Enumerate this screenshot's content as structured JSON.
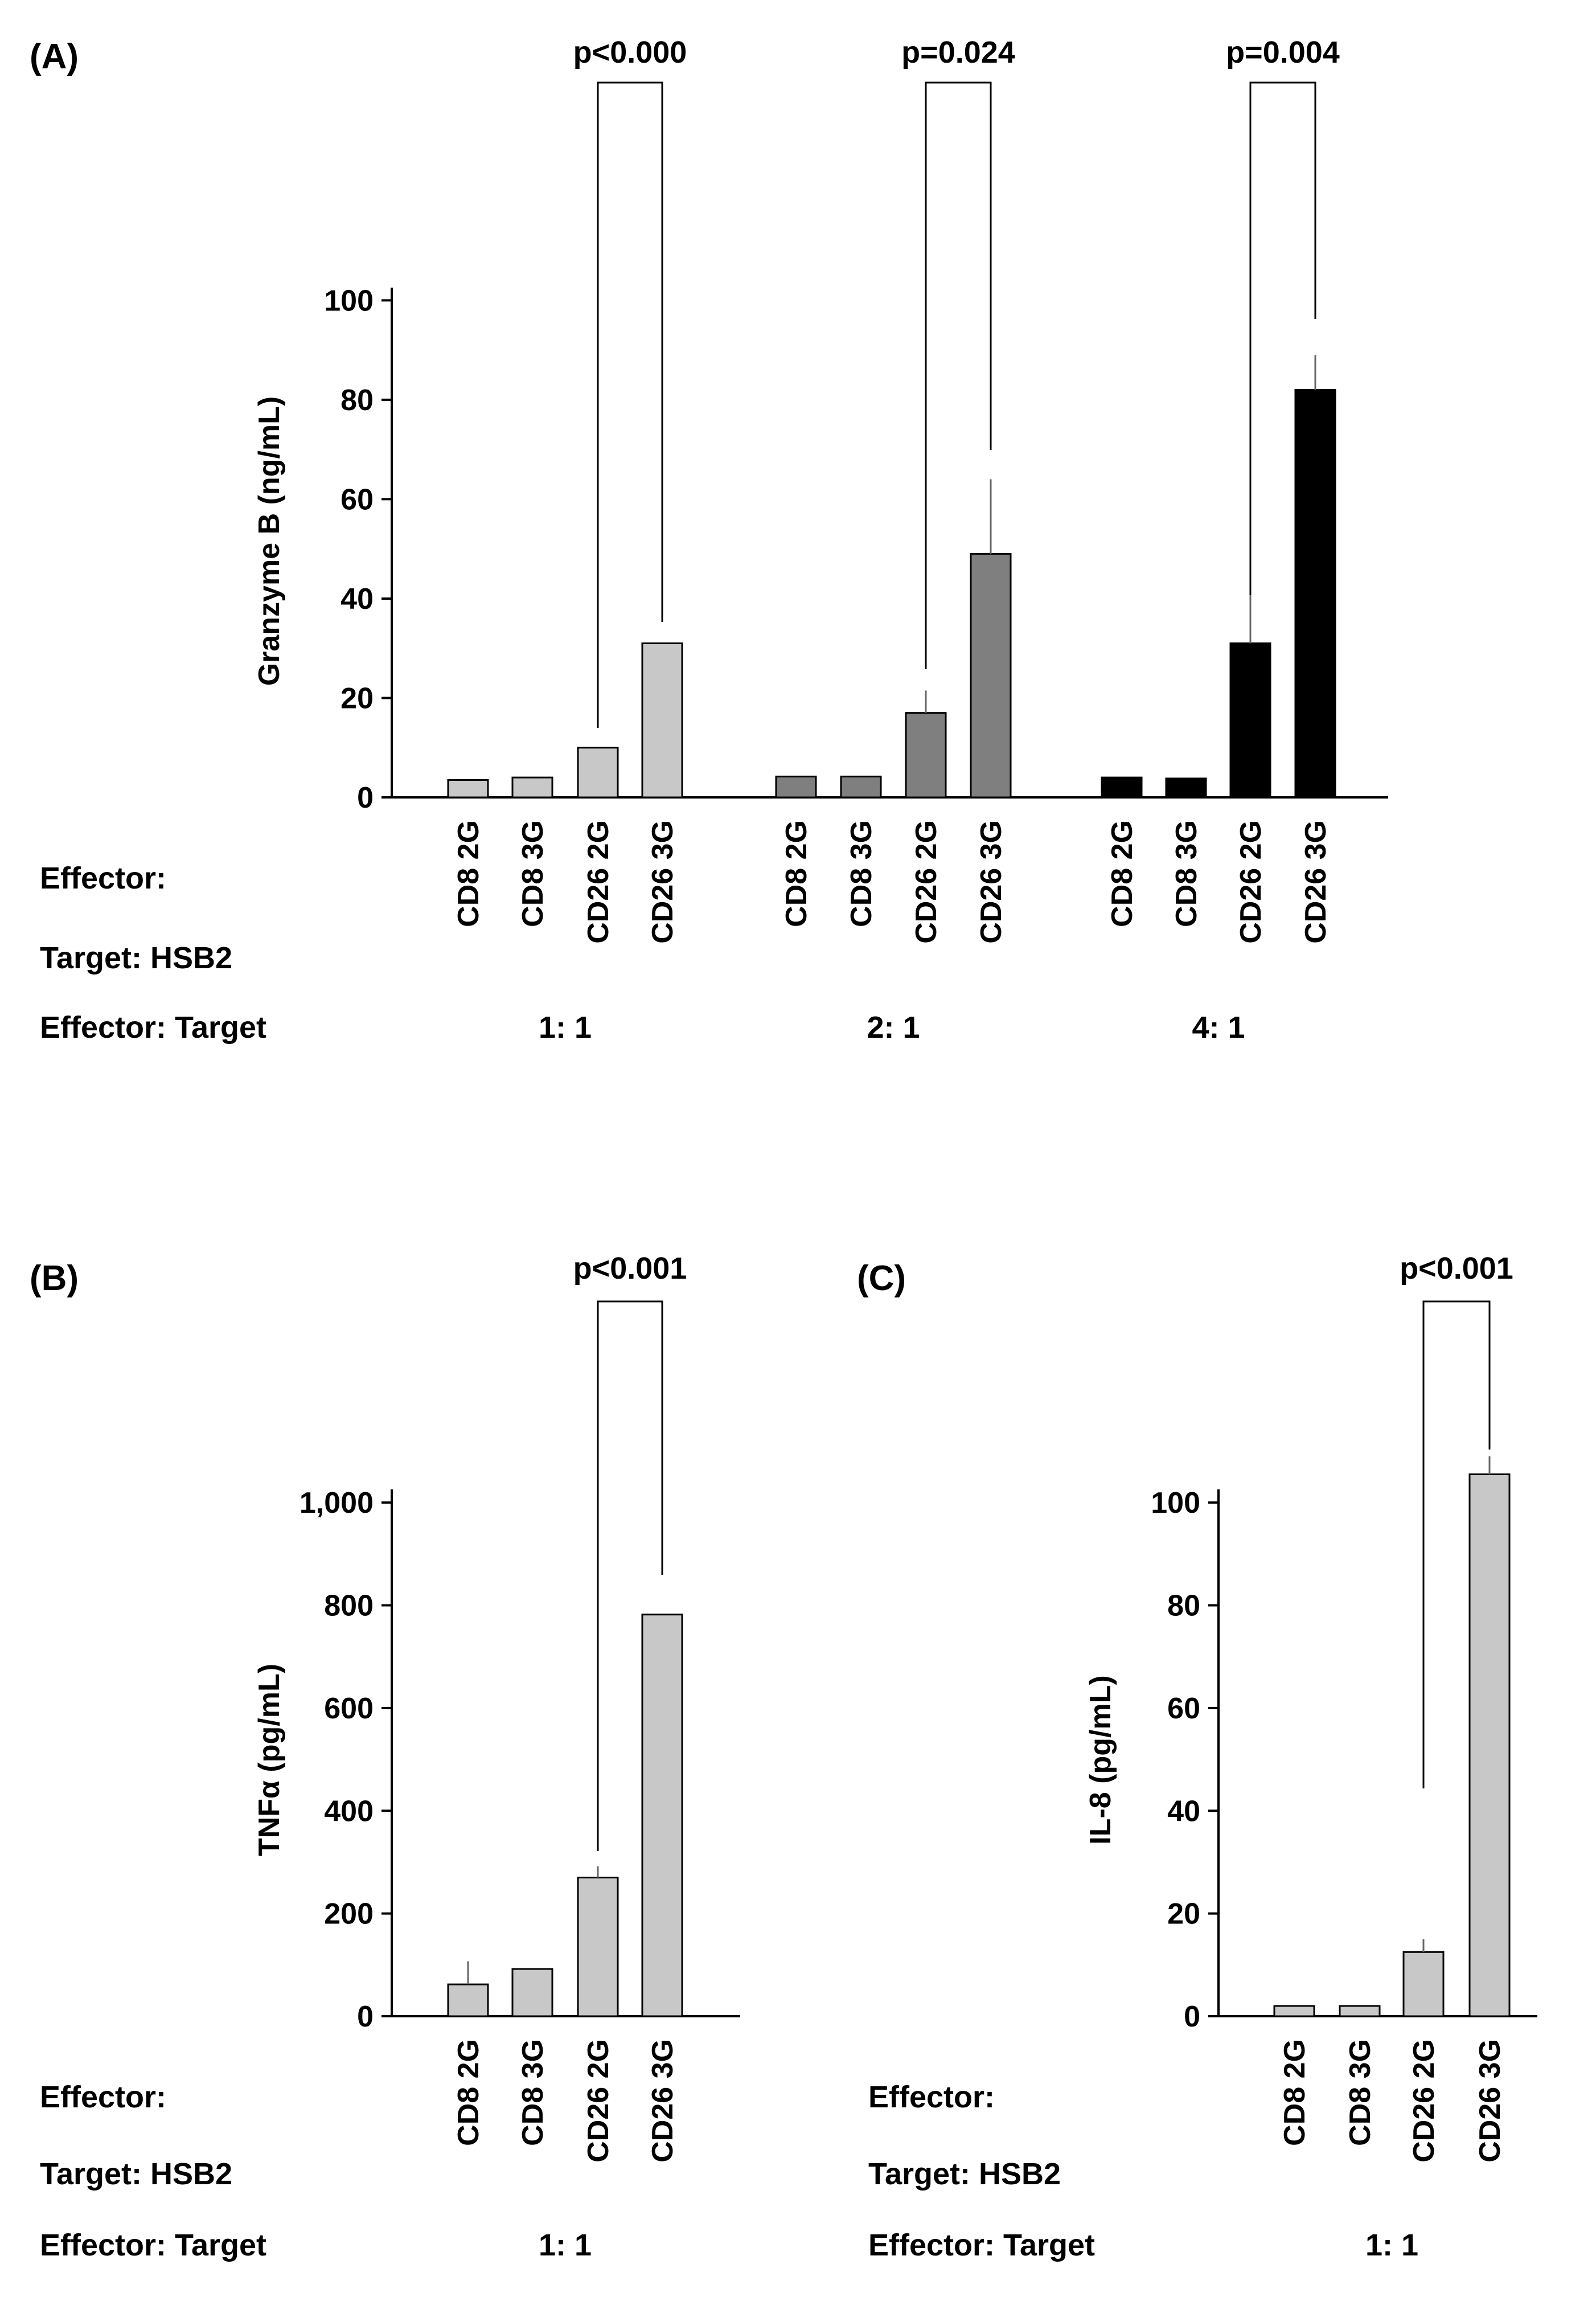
{
  "chart_data": [
    {
      "type": "bar",
      "panel": "(A)",
      "ylabel": "Granzyme B (ng/mL)",
      "ylim": [
        0,
        100
      ],
      "yticks": [
        "0",
        "20",
        "40",
        "60",
        "80",
        "100"
      ],
      "row_labels": {
        "effector": "Effector:",
        "target": "Target: HSB2",
        "ratio": "Effector: Target"
      },
      "groups": [
        {
          "ratio": "1: 1",
          "color": "#c8c8c8",
          "categories": [
            "CD8 2G",
            "CD8 3G",
            "CD26 2G",
            "CD26 3G"
          ],
          "values": [
            3.5,
            4,
            10,
            31
          ],
          "errors": [
            0,
            0,
            0,
            0
          ],
          "pvalue": {
            "label": "p<0.000",
            "between": [
              2,
              3
            ]
          }
        },
        {
          "ratio": "2: 1",
          "color": "#7f7f7f",
          "categories": [
            "CD8 2G",
            "CD8 3G",
            "CD26 2G",
            "CD26 3G"
          ],
          "values": [
            4.2,
            4.2,
            17,
            49
          ],
          "errors": [
            0,
            0,
            4.5,
            15
          ],
          "pvalue": {
            "label": "p=0.024",
            "between": [
              2,
              3
            ]
          }
        },
        {
          "ratio": "4: 1",
          "color": "#000000",
          "categories": [
            "CD8 2G",
            "CD8 3G",
            "CD26 2G",
            "CD26 3G"
          ],
          "values": [
            4,
            3.8,
            31,
            82
          ],
          "errors": [
            0,
            0,
            13,
            7
          ],
          "pvalue": {
            "label": "p=0.004",
            "between": [
              2,
              3
            ]
          }
        }
      ]
    },
    {
      "type": "bar",
      "panel": "(B)",
      "ylabel": "TNFα (pg/mL)",
      "ylim": [
        0,
        1000
      ],
      "yticks": [
        "0",
        "200",
        "400",
        "600",
        "800",
        "1,000"
      ],
      "row_labels": {
        "effector": "Effector:",
        "target": "Target: HSB2",
        "ratio": "Effector: Target"
      },
      "groups": [
        {
          "ratio": "1: 1",
          "color": "#c8c8c8",
          "categories": [
            "CD8 2G",
            "CD8 3G",
            "CD26 2G",
            "CD26 3G"
          ],
          "values": [
            62,
            92,
            270,
            782
          ],
          "errors": [
            45,
            0,
            22,
            0
          ],
          "pvalue": {
            "label": "p<0.001",
            "between": [
              2,
              3
            ]
          }
        }
      ]
    },
    {
      "type": "bar",
      "panel": "(C)",
      "ylabel": "IL-8 (pg/mL)",
      "ylim": [
        0,
        100
      ],
      "yticks": [
        "0",
        "20",
        "40",
        "60",
        "80",
        "100"
      ],
      "row_labels": {
        "effector": "Effector:",
        "target": "Target: HSB2",
        "ratio": "Effector: Target"
      },
      "groups": [
        {
          "ratio": "1: 1",
          "color": "#c8c8c8",
          "categories": [
            "CD8 2G",
            "CD8 3G",
            "CD26 2G",
            "CD26 3G"
          ],
          "values": [
            2,
            2,
            12.5,
            105.5
          ],
          "errors": [
            0,
            0,
            2.5,
            3.5
          ],
          "pvalue": {
            "label": "p<0.001",
            "between": [
              2,
              3
            ]
          }
        }
      ]
    }
  ]
}
